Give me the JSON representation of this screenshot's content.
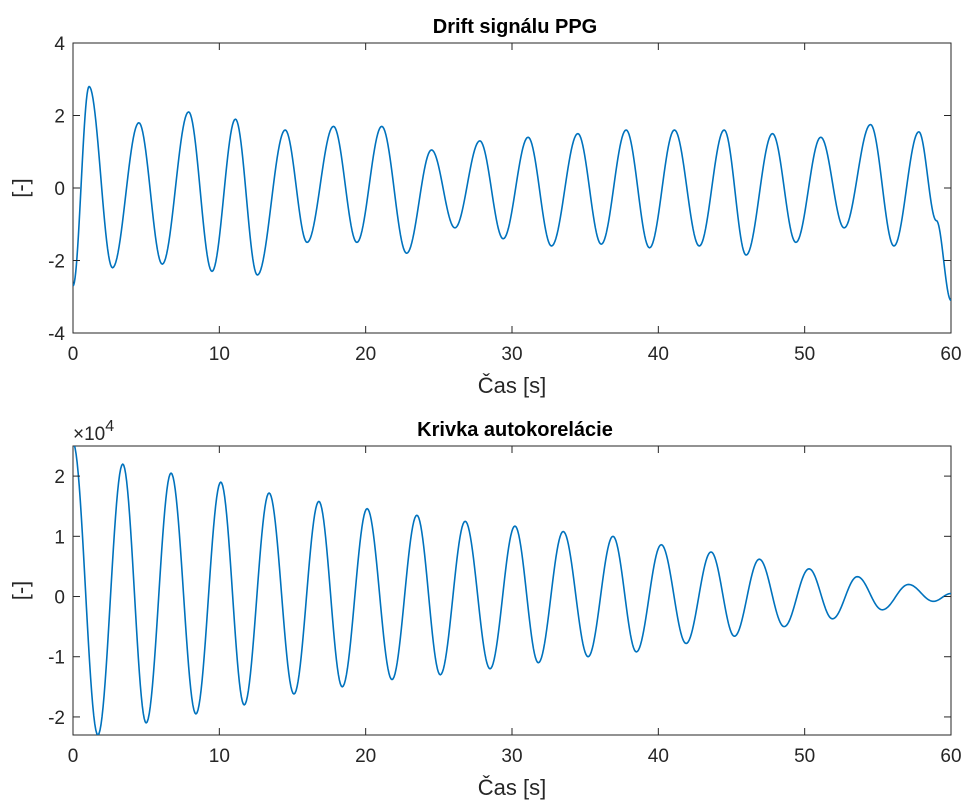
{
  "colors": {
    "line": "#0072BD",
    "axes": "#262626",
    "background": "#ffffff"
  },
  "chart_data": [
    {
      "type": "line",
      "title": "Drift signálu PPG",
      "xlabel": "Čas [s]",
      "ylabel": "[-]",
      "xlim": [
        0,
        60
      ],
      "ylim": [
        -4,
        4
      ],
      "xticks": [
        0,
        10,
        20,
        30,
        40,
        50,
        60
      ],
      "yticks": [
        -4,
        -2,
        0,
        2,
        4
      ],
      "xtick_labels": [
        "0",
        "10",
        "20",
        "30",
        "40",
        "50",
        "60"
      ],
      "ytick_labels": [
        "-4",
        "-2",
        "0",
        "2",
        "4"
      ],
      "grid": false,
      "series": [
        {
          "extrema": [
            {
              "x": 0.0,
              "y": -2.7
            },
            {
              "x": 1.1,
              "y": 2.8
            },
            {
              "x": 2.7,
              "y": -2.2
            },
            {
              "x": 4.5,
              "y": 1.8
            },
            {
              "x": 6.1,
              "y": -2.1
            },
            {
              "x": 7.9,
              "y": 2.1
            },
            {
              "x": 9.5,
              "y": -2.3
            },
            {
              "x": 11.1,
              "y": 1.9
            },
            {
              "x": 12.6,
              "y": -2.4
            },
            {
              "x": 14.5,
              "y": 1.6
            },
            {
              "x": 16.0,
              "y": -1.5
            },
            {
              "x": 17.8,
              "y": 1.7
            },
            {
              "x": 19.4,
              "y": -1.5
            },
            {
              "x": 21.1,
              "y": 1.7
            },
            {
              "x": 22.8,
              "y": -1.8
            },
            {
              "x": 24.5,
              "y": 1.05
            },
            {
              "x": 26.1,
              "y": -1.1
            },
            {
              "x": 27.8,
              "y": 1.3
            },
            {
              "x": 29.4,
              "y": -1.4
            },
            {
              "x": 31.1,
              "y": 1.4
            },
            {
              "x": 32.7,
              "y": -1.6
            },
            {
              "x": 34.5,
              "y": 1.5
            },
            {
              "x": 36.1,
              "y": -1.55
            },
            {
              "x": 37.8,
              "y": 1.6
            },
            {
              "x": 39.4,
              "y": -1.65
            },
            {
              "x": 41.1,
              "y": 1.6
            },
            {
              "x": 42.8,
              "y": -1.6
            },
            {
              "x": 44.5,
              "y": 1.6
            },
            {
              "x": 46.0,
              "y": -1.85
            },
            {
              "x": 47.8,
              "y": 1.5
            },
            {
              "x": 49.4,
              "y": -1.5
            },
            {
              "x": 51.1,
              "y": 1.4
            },
            {
              "x": 52.7,
              "y": -1.1
            },
            {
              "x": 54.5,
              "y": 1.75
            },
            {
              "x": 56.1,
              "y": -1.6
            },
            {
              "x": 57.8,
              "y": 1.55
            },
            {
              "x": 59.0,
              "y": -0.9
            },
            {
              "x": 60.0,
              "y": -3.1
            }
          ]
        }
      ]
    },
    {
      "type": "line",
      "title": "Krivka autokorelácie",
      "xlabel": "Čas [s]",
      "ylabel": "[-]",
      "xlim": [
        0,
        60
      ],
      "ylim": [
        -2.3,
        2.5
      ],
      "y_multiplier": "×10",
      "y_multiplier_exponent": "4",
      "xticks": [
        0,
        10,
        20,
        30,
        40,
        50,
        60
      ],
      "yticks": [
        -2,
        -1,
        0,
        1,
        2
      ],
      "xtick_labels": [
        "0",
        "10",
        "20",
        "30",
        "40",
        "50",
        "60"
      ],
      "ytick_labels": [
        "-2",
        "-1",
        "0",
        "1",
        "2"
      ],
      "grid": false,
      "series": [
        {
          "extrema": [
            {
              "x": 0.0,
              "y": 2.55
            },
            {
              "x": 1.7,
              "y": -2.3
            },
            {
              "x": 3.4,
              "y": 2.2
            },
            {
              "x": 5.0,
              "y": -2.1
            },
            {
              "x": 6.7,
              "y": 2.05
            },
            {
              "x": 8.4,
              "y": -1.95
            },
            {
              "x": 10.1,
              "y": 1.9
            },
            {
              "x": 11.7,
              "y": -1.8
            },
            {
              "x": 13.4,
              "y": 1.72
            },
            {
              "x": 15.1,
              "y": -1.62
            },
            {
              "x": 16.8,
              "y": 1.58
            },
            {
              "x": 18.4,
              "y": -1.5
            },
            {
              "x": 20.1,
              "y": 1.46
            },
            {
              "x": 21.8,
              "y": -1.38
            },
            {
              "x": 23.5,
              "y": 1.35
            },
            {
              "x": 25.1,
              "y": -1.3
            },
            {
              "x": 26.8,
              "y": 1.25
            },
            {
              "x": 28.5,
              "y": -1.2
            },
            {
              "x": 30.2,
              "y": 1.17
            },
            {
              "x": 31.8,
              "y": -1.1
            },
            {
              "x": 33.5,
              "y": 1.08
            },
            {
              "x": 35.2,
              "y": -1.0
            },
            {
              "x": 36.9,
              "y": 1.0
            },
            {
              "x": 38.5,
              "y": -0.92
            },
            {
              "x": 40.2,
              "y": 0.86
            },
            {
              "x": 41.9,
              "y": -0.78
            },
            {
              "x": 43.6,
              "y": 0.74
            },
            {
              "x": 45.2,
              "y": -0.66
            },
            {
              "x": 46.9,
              "y": 0.62
            },
            {
              "x": 48.6,
              "y": -0.5
            },
            {
              "x": 50.3,
              "y": 0.46
            },
            {
              "x": 51.9,
              "y": -0.37
            },
            {
              "x": 53.6,
              "y": 0.33
            },
            {
              "x": 55.3,
              "y": -0.22
            },
            {
              "x": 57.1,
              "y": 0.2
            },
            {
              "x": 58.8,
              "y": -0.08
            },
            {
              "x": 60.0,
              "y": 0.05
            }
          ]
        }
      ]
    }
  ]
}
